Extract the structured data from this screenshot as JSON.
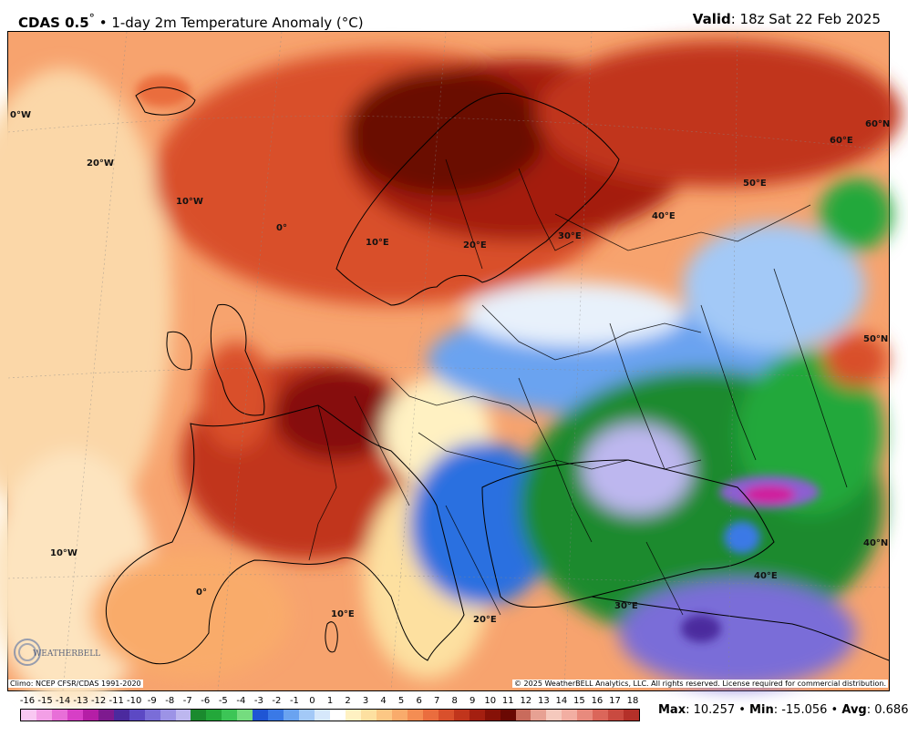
{
  "header": {
    "model": "CDAS 0.5",
    "degree_mark": "°",
    "separator": " • ",
    "product": "1-day 2m Temperature Anomaly (°C)",
    "valid_label": "Valid",
    "valid_value": ": 18z Sat 22 Feb 2025"
  },
  "map": {
    "region": "Europe",
    "lon_labels": [
      "0°W",
      "20°W",
      "10°W",
      "0°",
      "10°E",
      "20°E",
      "30°E",
      "40°E",
      "50°E",
      "60°E",
      "60°N",
      "50°N",
      "10°W",
      "0°",
      "10°E",
      "20°E",
      "30°E",
      "40°E",
      "40°N"
    ],
    "colors": {
      "warm_strong": "#8b1a05",
      "warm": "#e0572a",
      "warm_light": "#fbb78a",
      "neutral": "#fff2d9",
      "cool_light": "#a9d4ff",
      "cool": "#2a6fe0",
      "cold": "#19a32b",
      "very_cold": "#8d5fd1",
      "extreme_cold": "#d01a9c"
    }
  },
  "footer": {
    "climo": "Climo: NCEP CFSR/CDAS 1991-2020",
    "copyright": "© 2025 WeatherBELL Analytics, LLC. All rights reserved. License required for commercial distribution.",
    "logo_text": "WEATHERBELL"
  },
  "scale": {
    "labels": [
      "-16",
      "-15",
      "-14",
      "-13",
      "-12",
      "-11",
      "-10",
      "-9",
      "-8",
      "-7",
      "-6",
      "-5",
      "-4",
      "-3",
      "-2",
      "-1",
      "0",
      "1",
      "2",
      "3",
      "4",
      "5",
      "6",
      "7",
      "8",
      "9",
      "10",
      "11",
      "12",
      "13",
      "14",
      "15",
      "16",
      "17",
      "18"
    ],
    "colors": [
      "#f9c8f2",
      "#f39fe6",
      "#e86fd8",
      "#d73fc6",
      "#b51ea6",
      "#7e1a8f",
      "#4b2a9e",
      "#5c49c4",
      "#7a6dd8",
      "#9c93e6",
      "#bdb7ef",
      "#1a8a2e",
      "#23a83a",
      "#3cc556",
      "#75dc7f",
      "#1f55d4",
      "#3a79e6",
      "#6aa3f0",
      "#a3c9f7",
      "#d6e8fb",
      "#ffffff",
      "#fff1c2",
      "#fde0a0",
      "#fcc784",
      "#f9ab6b",
      "#f48d53",
      "#ea6d3e",
      "#d9502c",
      "#c1351c",
      "#a41f10",
      "#861107",
      "#6a0803",
      "#c96b5c",
      "#e7a193",
      "#f5c9bd",
      "#f2aea2",
      "#e88a7d",
      "#db665a",
      "#c94a40",
      "#b43029"
    ]
  },
  "stats": {
    "max_label": "Max",
    "max_value": ": 10.257",
    "min_label": "Min",
    "min_value": ": -15.056",
    "avg_label": "Avg",
    "avg_value": ": 0.686",
    "sep": " • "
  }
}
